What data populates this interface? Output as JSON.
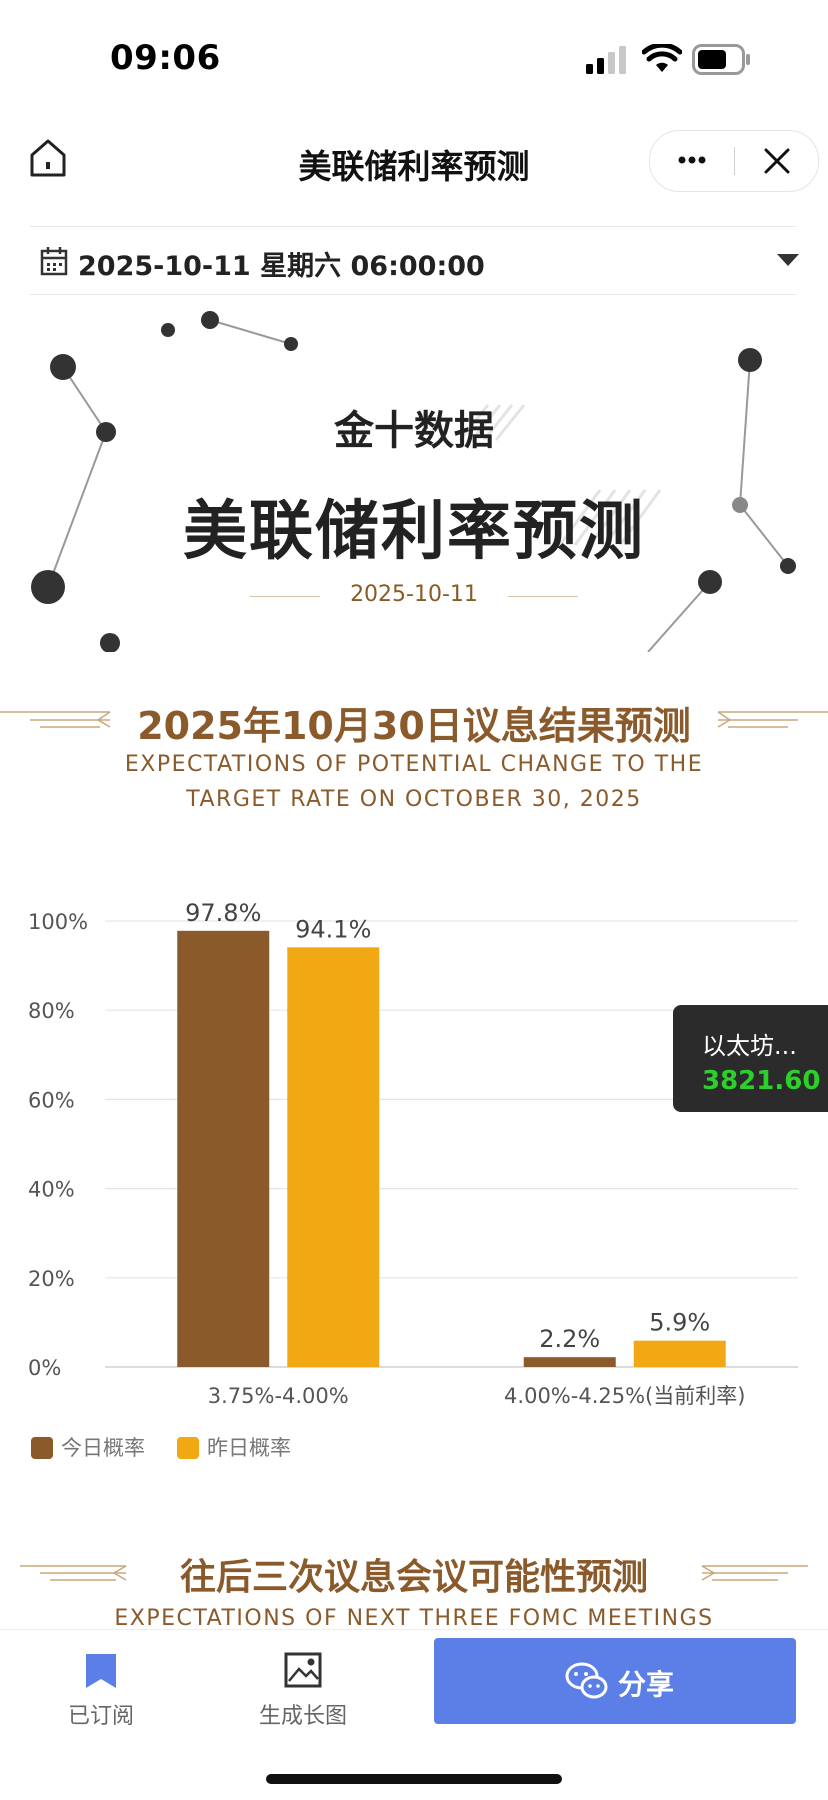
{
  "status_bar": {
    "time": "09:06"
  },
  "nav": {
    "title": "美联储利率预测",
    "more_icon": "more-dots-icon",
    "close_icon": "close-icon"
  },
  "date_selector": {
    "value": "2025-10-11 星期六 06:00:00"
  },
  "hero": {
    "brand": "金十数据",
    "title": "美联储利率预测",
    "date": "2025-10-11"
  },
  "section1": {
    "title": "2025年10月30日议息结果预测",
    "subtitle_line1": "EXPECTATIONS OF POTENTIAL CHANGE TO THE",
    "subtitle_line2": "TARGET RATE ON OCTOBER 30, 2025"
  },
  "chart_data": {
    "type": "bar",
    "categories": [
      "3.75%-4.00%",
      "4.00%-4.25%(当前利率)"
    ],
    "series": [
      {
        "name": "今日概率",
        "values": [
          97.8,
          2.2
        ],
        "labels": [
          "97.8%",
          "2.2%"
        ],
        "color": "#8b5a2b"
      },
      {
        "name": "昨日概率",
        "values": [
          94.1,
          5.9
        ],
        "labels": [
          "94.1%",
          "5.9%"
        ],
        "color": "#f2a812"
      }
    ],
    "y_ticks": [
      "0%",
      "20%",
      "40%",
      "60%",
      "80%",
      "100%"
    ],
    "ylim": [
      0,
      100
    ],
    "grid": true,
    "legend": "bottom-left"
  },
  "ticker": {
    "name": "以太坊...",
    "value": "3821.60",
    "value_color": "#2bd02b"
  },
  "section2": {
    "title": "往后三次议息会议可能性预测",
    "subtitle": "EXPECTATIONS OF NEXT THREE FOMC MEETINGS"
  },
  "tabbar": {
    "subscribed_label": "已订阅",
    "longimage_label": "生成长图",
    "share_label": "分享"
  }
}
